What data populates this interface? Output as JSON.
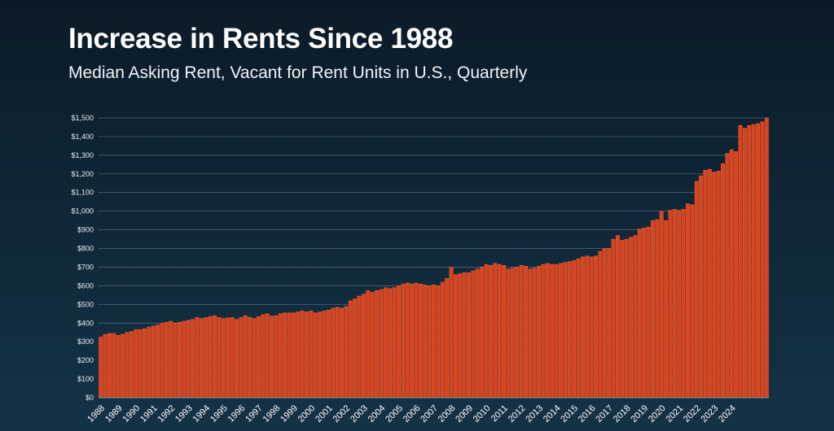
{
  "title": "Increase in Rents Since 1988",
  "subtitle": "Median Asking Rent, Vacant for Rent Units in U.S., Quarterly",
  "colors": {
    "bar": "#d9431d",
    "bar_edge": "#ff6a3d",
    "grid": "#8a98a3",
    "axis_text": "#e8ecef"
  },
  "chart_data": {
    "type": "bar",
    "title": "Increase in Rents Since 1988",
    "subtitle": "Median Asking Rent, Vacant for Rent Units in U.S., Quarterly",
    "xlabel": "",
    "ylabel": "",
    "ylim": [
      0,
      1500
    ],
    "grid": true,
    "y_ticks": [
      0,
      100,
      200,
      300,
      400,
      500,
      600,
      700,
      800,
      900,
      1000,
      1100,
      1200,
      1300,
      1400,
      1500
    ],
    "y_tick_labels": [
      "$0",
      "$100",
      "$200",
      "$300",
      "$400",
      "$500",
      "$600",
      "$700",
      "$800",
      "$900",
      "$1,000",
      "$1,100",
      "$1,200",
      "$1,300",
      "$1,400",
      "$1,500"
    ],
    "x_tick_labels": [
      "1988",
      "1989",
      "1990",
      "1991",
      "1992",
      "1993",
      "1994",
      "1995",
      "1996",
      "1997",
      "1998",
      "1999",
      "2000",
      "2001",
      "2002",
      "2003",
      "2004",
      "2005",
      "2006",
      "2007",
      "2008",
      "2009",
      "2010",
      "2011",
      "2012",
      "2013",
      "2014",
      "2015",
      "2016",
      "2017",
      "2018",
      "2019",
      "2020",
      "2021",
      "2022",
      "2023",
      "2024"
    ],
    "series": [
      {
        "values": [
          325,
          340,
          345,
          345,
          335,
          340,
          350,
          355,
          365,
          365,
          370,
          378,
          385,
          390,
          400,
          405,
          410,
          400,
          405,
          410,
          415,
          420,
          430,
          425,
          430,
          435,
          440,
          430,
          425,
          428,
          430,
          420,
          430,
          440,
          432,
          425,
          435,
          445,
          450,
          438,
          440,
          450,
          455,
          455,
          455,
          460,
          465,
          460,
          465,
          455,
          460,
          465,
          470,
          480,
          485,
          480,
          490,
          520,
          530,
          545,
          555,
          575,
          565,
          575,
          580,
          590,
          585,
          590,
          600,
          610,
          615,
          610,
          615,
          610,
          605,
          600,
          605,
          600,
          620,
          640,
          700,
          660,
          665,
          670,
          670,
          680,
          690,
          700,
          715,
          710,
          720,
          715,
          710,
          690,
          695,
          700,
          710,
          705,
          690,
          695,
          705,
          715,
          720,
          715,
          715,
          720,
          725,
          730,
          735,
          745,
          755,
          760,
          755,
          760,
          785,
          800,
          800,
          850,
          870,
          845,
          850,
          860,
          870,
          905,
          910,
          915,
          950,
          955,
          1000,
          950,
          1005,
          1010,
          1005,
          1010,
          1040,
          1035,
          1160,
          1190,
          1220,
          1225,
          1210,
          1215,
          1255,
          1310,
          1330,
          1320,
          1460,
          1445,
          1460,
          1465,
          1470,
          1480,
          1500
        ]
      }
    ]
  }
}
